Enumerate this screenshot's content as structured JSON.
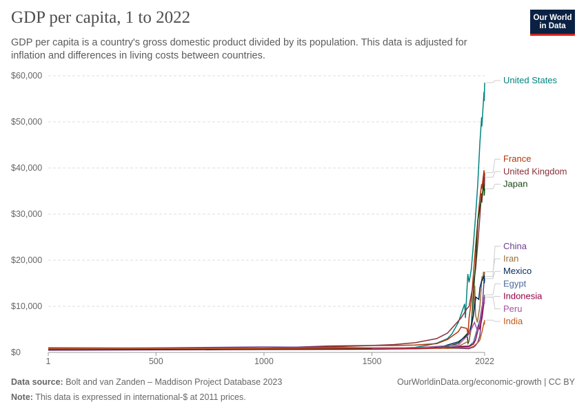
{
  "title": "GDP per capita, 1 to 2022",
  "subtitle": "GDP per capita is a country's gross domestic product divided by its population. This data is adjusted for inflation and differences in living costs between countries.",
  "logo": {
    "line1": "Our World",
    "line2": "in Data"
  },
  "footer": {
    "source_label": "Data source:",
    "source_text": "Bolt and van Zanden – Maddison Project Database 2023",
    "note_label": "Note:",
    "note_text": "This data is expressed in international-$ at 2011 prices.",
    "right_text": "OurWorldinData.org/economic-growth | CC BY"
  },
  "chart_data": {
    "type": "line",
    "title": "GDP per capita, 1 to 2022",
    "xlim": [
      1,
      2022
    ],
    "ylim": [
      0,
      60000
    ],
    "x_ticks": [
      1,
      500,
      1000,
      1500,
      2022
    ],
    "y_ticks": [
      {
        "value": 0,
        "label": "$0"
      },
      {
        "value": 10000,
        "label": "$10,000"
      },
      {
        "value": 20000,
        "label": "$20,000"
      },
      {
        "value": 30000,
        "label": "$30,000"
      },
      {
        "value": 40000,
        "label": "$40,000"
      },
      {
        "value": 50000,
        "label": "$50,000"
      },
      {
        "value": 60000,
        "label": "$60,000"
      }
    ],
    "grid": true,
    "legend": "right, labels at line ends",
    "series": [
      {
        "name": "United States",
        "color": "#00847e",
        "points": [
          [
            1,
            900
          ],
          [
            1000,
            900
          ],
          [
            1500,
            950
          ],
          [
            1650,
            1000
          ],
          [
            1700,
            1100
          ],
          [
            1750,
            1500
          ],
          [
            1800,
            2000
          ],
          [
            1850,
            3000
          ],
          [
            1870,
            4000
          ],
          [
            1900,
            6500
          ],
          [
            1929,
            10500
          ],
          [
            1933,
            7500
          ],
          [
            1944,
            17000
          ],
          [
            1950,
            15200
          ],
          [
            1960,
            18000
          ],
          [
            1970,
            23500
          ],
          [
            1980,
            29500
          ],
          [
            1990,
            36500
          ],
          [
            2000,
            45500
          ],
          [
            2008,
            51000
          ],
          [
            2009,
            49000
          ],
          [
            2019,
            56500
          ],
          [
            2020,
            54500
          ],
          [
            2022,
            58500
          ]
        ]
      },
      {
        "name": "France",
        "color": "#b13507",
        "points": [
          [
            1,
            1000
          ],
          [
            1000,
            900
          ],
          [
            1300,
            1200
          ],
          [
            1500,
            1500
          ],
          [
            1600,
            1500
          ],
          [
            1700,
            1600
          ],
          [
            1800,
            1900
          ],
          [
            1850,
            2800
          ],
          [
            1900,
            4500
          ],
          [
            1913,
            5500
          ],
          [
            1940,
            5200
          ],
          [
            1945,
            3800
          ],
          [
            1950,
            7500
          ],
          [
            1960,
            11000
          ],
          [
            1970,
            17000
          ],
          [
            1980,
            23000
          ],
          [
            1990,
            28500
          ],
          [
            2000,
            33500
          ],
          [
            2008,
            36500
          ],
          [
            2009,
            35500
          ],
          [
            2019,
            39500
          ],
          [
            2020,
            36000
          ],
          [
            2022,
            39000
          ]
        ]
      },
      {
        "name": "United Kingdom",
        "color": "#883039",
        "points": [
          [
            1,
            900
          ],
          [
            1000,
            900
          ],
          [
            1300,
            1400
          ],
          [
            1500,
            1500
          ],
          [
            1600,
            1700
          ],
          [
            1700,
            2100
          ],
          [
            1800,
            3000
          ],
          [
            1850,
            4200
          ],
          [
            1900,
            6800
          ],
          [
            1913,
            7500
          ],
          [
            1940,
            9500
          ],
          [
            1950,
            10000
          ],
          [
            1960,
            12500
          ],
          [
            1970,
            15000
          ],
          [
            1980,
            18000
          ],
          [
            1990,
            23500
          ],
          [
            2000,
            29500
          ],
          [
            2007,
            34500
          ],
          [
            2009,
            32500
          ],
          [
            2019,
            38500
          ],
          [
            2020,
            35000
          ],
          [
            2022,
            38000
          ]
        ]
      },
      {
        "name": "Japan",
        "color": "#18470f",
        "points": [
          [
            730,
            600
          ],
          [
            1000,
            700
          ],
          [
            1500,
            800
          ],
          [
            1600,
            900
          ],
          [
            1700,
            1000
          ],
          [
            1850,
            1300
          ],
          [
            1900,
            2000
          ],
          [
            1940,
            4000
          ],
          [
            1945,
            2000
          ],
          [
            1950,
            2500
          ],
          [
            1960,
            5500
          ],
          [
            1970,
            13000
          ],
          [
            1980,
            19000
          ],
          [
            1990,
            28500
          ],
          [
            2000,
            31500
          ],
          [
            2008,
            33500
          ],
          [
            2019,
            36500
          ],
          [
            2020,
            34000
          ],
          [
            2022,
            35500
          ]
        ]
      },
      {
        "name": "China",
        "color": "#6d3e91",
        "points": [
          [
            1,
            800
          ],
          [
            1000,
            1200
          ],
          [
            1500,
            1000
          ],
          [
            1700,
            1000
          ],
          [
            1850,
            900
          ],
          [
            1900,
            900
          ],
          [
            1950,
            800
          ],
          [
            1960,
            1000
          ],
          [
            1970,
            1100
          ],
          [
            1980,
            1500
          ],
          [
            1990,
            2200
          ],
          [
            2000,
            3700
          ],
          [
            2010,
            9000
          ],
          [
            2019,
            15500
          ],
          [
            2022,
            16500
          ]
        ]
      },
      {
        "name": "Iran",
        "color": "#996d39",
        "points": [
          [
            1820,
            1000
          ],
          [
            1900,
            1300
          ],
          [
            1950,
            2500
          ],
          [
            1970,
            8000
          ],
          [
            1976,
            14500
          ],
          [
            1980,
            8000
          ],
          [
            1988,
            6500
          ],
          [
            2000,
            10000
          ],
          [
            2010,
            16500
          ],
          [
            2012,
            15500
          ],
          [
            2017,
            17500
          ],
          [
            2019,
            16000
          ],
          [
            2022,
            17500
          ]
        ]
      },
      {
        "name": "Mexico",
        "color": "#00295b",
        "points": [
          [
            1,
            500
          ],
          [
            1500,
            700
          ],
          [
            1600,
            800
          ],
          [
            1700,
            1000
          ],
          [
            1820,
            1200
          ],
          [
            1900,
            2300
          ],
          [
            1950,
            4000
          ],
          [
            1970,
            8000
          ],
          [
            1981,
            12000
          ],
          [
            1995,
            11500
          ],
          [
            2000,
            14000
          ],
          [
            2008,
            15500
          ],
          [
            2019,
            16500
          ],
          [
            2020,
            15000
          ],
          [
            2022,
            16000
          ]
        ]
      },
      {
        "name": "Egypt",
        "color": "#4c6a9c",
        "points": [
          [
            1820,
            1000
          ],
          [
            1900,
            1300
          ],
          [
            1950,
            1400
          ],
          [
            1970,
            2200
          ],
          [
            1990,
            5500
          ],
          [
            2000,
            7000
          ],
          [
            2010,
            10000
          ],
          [
            2019,
            11500
          ],
          [
            2022,
            12500
          ]
        ]
      },
      {
        "name": "Indonesia",
        "color": "#970046",
        "points": [
          [
            1,
            600
          ],
          [
            1500,
            700
          ],
          [
            1700,
            800
          ],
          [
            1820,
            900
          ],
          [
            1900,
            1200
          ],
          [
            1950,
            1300
          ],
          [
            1970,
            1800
          ],
          [
            1980,
            2700
          ],
          [
            1997,
            6000
          ],
          [
            1999,
            5000
          ],
          [
            2010,
            7500
          ],
          [
            2019,
            11000
          ],
          [
            2022,
            12000
          ]
        ]
      },
      {
        "name": "Peru",
        "color": "#a2559c",
        "points": [
          [
            1500,
            900
          ],
          [
            1700,
            1000
          ],
          [
            1900,
            1600
          ],
          [
            1950,
            4000
          ],
          [
            1975,
            6500
          ],
          [
            1990,
            4500
          ],
          [
            2000,
            6000
          ],
          [
            2013,
            11000
          ],
          [
            2019,
            12000
          ],
          [
            2020,
            10500
          ],
          [
            2022,
            12000
          ]
        ]
      },
      {
        "name": "India",
        "color": "#be5915",
        "points": [
          [
            1,
            800
          ],
          [
            1000,
            900
          ],
          [
            1500,
            1000
          ],
          [
            1600,
            1000
          ],
          [
            1700,
            1000
          ],
          [
            1850,
            900
          ],
          [
            1900,
            1000
          ],
          [
            1950,
            1000
          ],
          [
            1970,
            1300
          ],
          [
            1990,
            2100
          ],
          [
            2000,
            2700
          ],
          [
            2010,
            4500
          ],
          [
            2019,
            6600
          ],
          [
            2020,
            6000
          ],
          [
            2022,
            7000
          ]
        ]
      }
    ],
    "label_order": [
      "United States",
      "France",
      "United Kingdom",
      "Japan",
      "China",
      "Iran",
      "Mexico",
      "Egypt",
      "Indonesia",
      "Peru",
      "India"
    ]
  }
}
